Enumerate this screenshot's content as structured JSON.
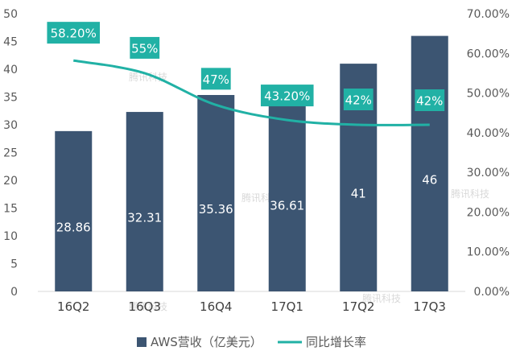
{
  "chart_data": {
    "type": "bar",
    "categories": [
      "16Q2",
      "16Q3",
      "16Q4",
      "17Q1",
      "17Q2",
      "17Q3"
    ],
    "series": [
      {
        "name": "AWS营收（亿美元）",
        "type": "bar",
        "axis": "left",
        "values": [
          28.86,
          32.31,
          35.36,
          36.61,
          41,
          46
        ],
        "labels": [
          "28.86",
          "32.31",
          "35.36",
          "36.61",
          "41",
          "46"
        ],
        "color": "#3c5572"
      },
      {
        "name": "同比增长率",
        "type": "line",
        "axis": "right",
        "values": [
          58.2,
          55,
          47,
          43.2,
          42,
          42
        ],
        "labels": [
          "58.20%",
          "55%",
          "47%",
          "43.20%",
          "42%",
          "42%"
        ],
        "color": "#21b1a5"
      }
    ],
    "ylim_left": [
      0,
      50
    ],
    "yticks_left": [
      "0",
      "5",
      "10",
      "15",
      "20",
      "25",
      "30",
      "35",
      "40",
      "45",
      "50"
    ],
    "ylim_right": [
      0,
      70
    ],
    "yticks_right": [
      "0.00%",
      "10.00%",
      "20.00%",
      "30.00%",
      "40.00%",
      "50.00%",
      "60.00%",
      "70.00%"
    ],
    "legend_position": "bottom",
    "grid": false
  },
  "watermark": "腾讯科技"
}
